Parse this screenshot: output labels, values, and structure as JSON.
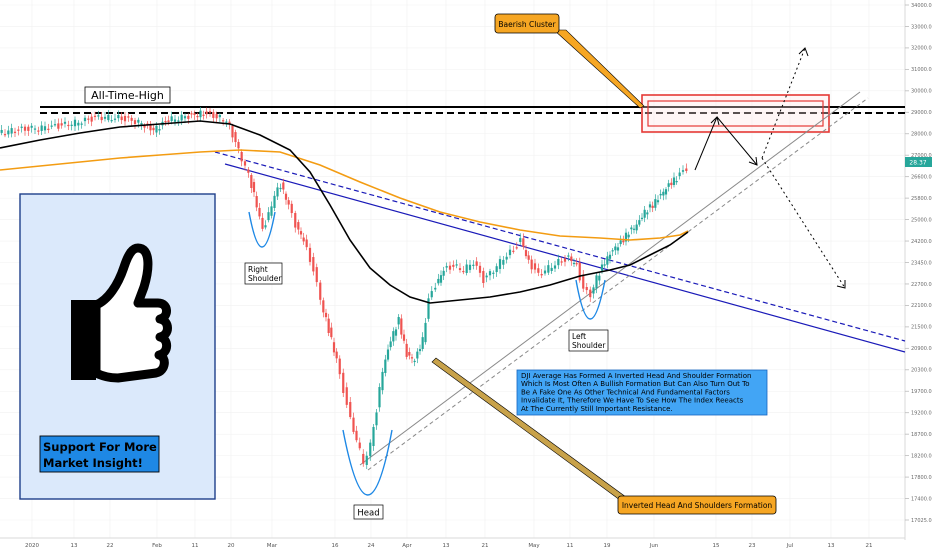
{
  "chart_data": {
    "type": "candlestick",
    "y_axis": {
      "ticks": [
        "34000.00",
        "33000.00",
        "32000.00",
        "31000.00",
        "30000.00",
        "29000.00",
        "28000.00",
        "27000.00",
        "26600.00",
        "25800.00",
        "25000.00",
        "24200.00",
        "23450.00",
        "22700.00",
        "22100.00",
        "21500.00",
        "20900.00",
        "20300.00",
        "19700.00",
        "19200.00",
        "18700.00",
        "18200.00",
        "17800.00",
        "17400.00",
        "17025.00"
      ],
      "price_badge": "28.37",
      "price_badge_color": "#26a69a"
    },
    "x_axis": {
      "ticks": [
        "2020",
        "13",
        "22",
        "Feb",
        "11",
        "20",
        "Mar",
        "16",
        "24",
        "Apr",
        "13",
        "21",
        "May",
        "11",
        "19",
        "Jun",
        "15",
        "23",
        "Jul",
        "13",
        "21"
      ]
    },
    "annotations": {
      "all_time_high": "All-Time-High",
      "bearish_cluster": "Baerish Cluster",
      "right_shoulder": [
        "Right",
        "Shoulder"
      ],
      "left_shoulder": [
        "Left",
        "Shoulder"
      ],
      "head": "Head",
      "inverted_hs_formation": "Inverted Head And Shoulders Formation",
      "description_lines": [
        "DJI Average Has Formed A Inverted Head And Shoulder Formation",
        "Which Is Most Often A Bullish Formation But Can Also Turn Out To",
        "Be A Fake One As Other Technical And Fundamental Factors",
        "Invalidate It, Therefore We Have To See How The Index Reeacts",
        "At The Currently Still Important Resistance."
      ]
    },
    "promo": {
      "lines": [
        "Support For More",
        "Market Insight!"
      ],
      "icon": "thumbs-up-icon"
    },
    "colors": {
      "bull": "#26a69a",
      "bear": "#ef5350",
      "ma_fast": "#000000",
      "ma_slow": "#f39c12",
      "trendline": "#1a1ab8",
      "pattern": "#1e88e5",
      "resistance_box": "#e53935"
    }
  }
}
